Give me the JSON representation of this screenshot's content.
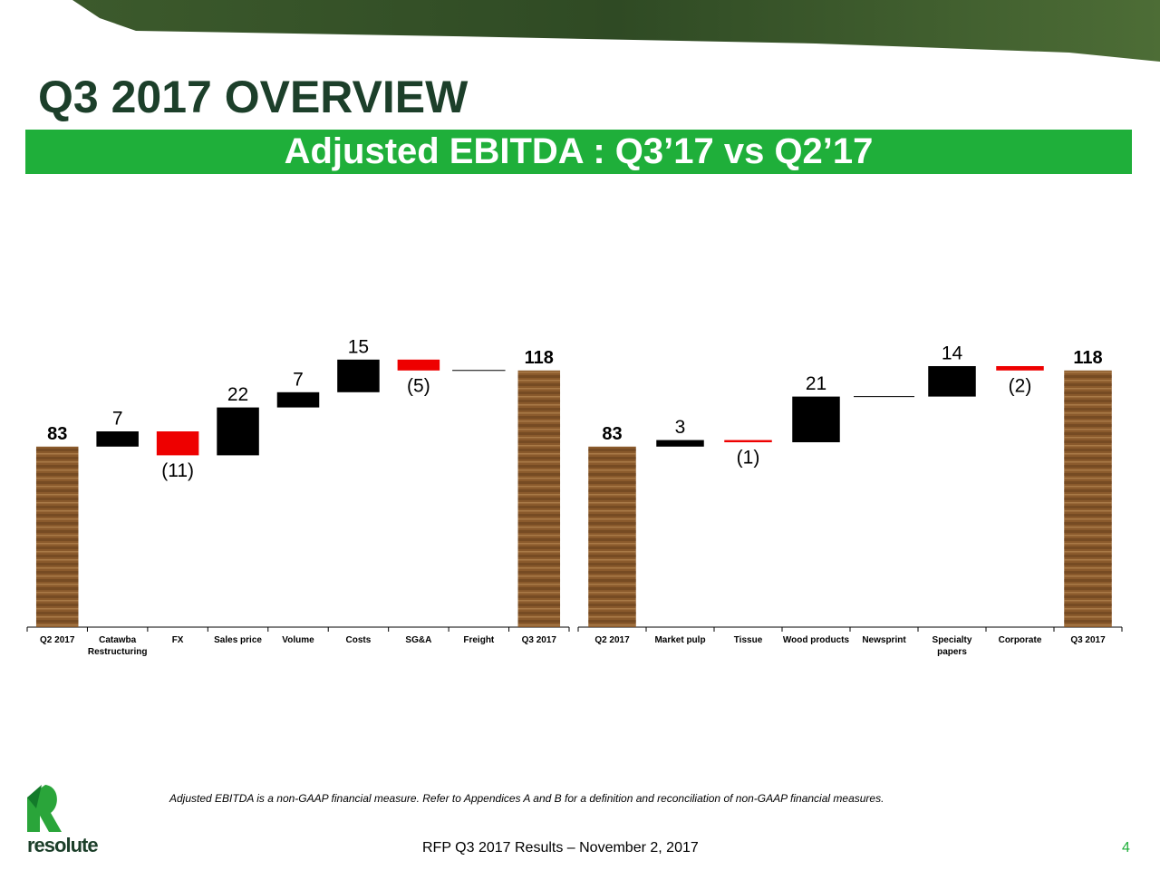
{
  "header": {
    "title": "Q3 2017 OVERVIEW",
    "subtitle": "Adjusted EBITDA : Q3’17 vs Q2’17"
  },
  "chart_data": [
    {
      "type": "waterfall",
      "categories": [
        "Q2 2017",
        "Catawba Restructuring",
        "FX",
        "Sales price",
        "Volume",
        "Costs",
        "SG&A",
        "Freight",
        "Q3 2017"
      ],
      "values": [
        83,
        7,
        -11,
        22,
        7,
        15,
        -5,
        0,
        118
      ],
      "value_labels": [
        "83",
        "7",
        "(11)",
        "22",
        "7",
        "15",
        "(5)",
        null,
        "118"
      ],
      "measure": [
        "total",
        "relative",
        "relative",
        "relative",
        "relative",
        "relative",
        "relative",
        "relative",
        "total"
      ],
      "increase_color": "#000000",
      "decrease_color": "#ee0000",
      "total_color": "#8a5a2c"
    },
    {
      "type": "waterfall",
      "categories": [
        "Q2 2017",
        "Market pulp",
        "Tissue",
        "Wood products",
        "Newsprint",
        "Specialty papers",
        "Corporate",
        "Q3 2017"
      ],
      "values": [
        83,
        3,
        -1,
        21,
        0,
        14,
        -2,
        118
      ],
      "value_labels": [
        "83",
        "3",
        "(1)",
        "21",
        null,
        "14",
        "(2)",
        "118"
      ],
      "measure": [
        "total",
        "relative",
        "relative",
        "relative",
        "relative",
        "relative",
        "relative",
        "total"
      ],
      "increase_color": "#000000",
      "decrease_color": "#ee0000",
      "total_color": "#8a5a2c"
    }
  ],
  "footer": {
    "note": "Adjusted EBITDA is a non-GAAP financial measure. Refer to Appendices A and B for a definition and reconciliation of non-GAAP financial measures.",
    "source": "RFP Q3 2017 Results – November 2, 2017",
    "page": "4",
    "logo": "resolute"
  }
}
